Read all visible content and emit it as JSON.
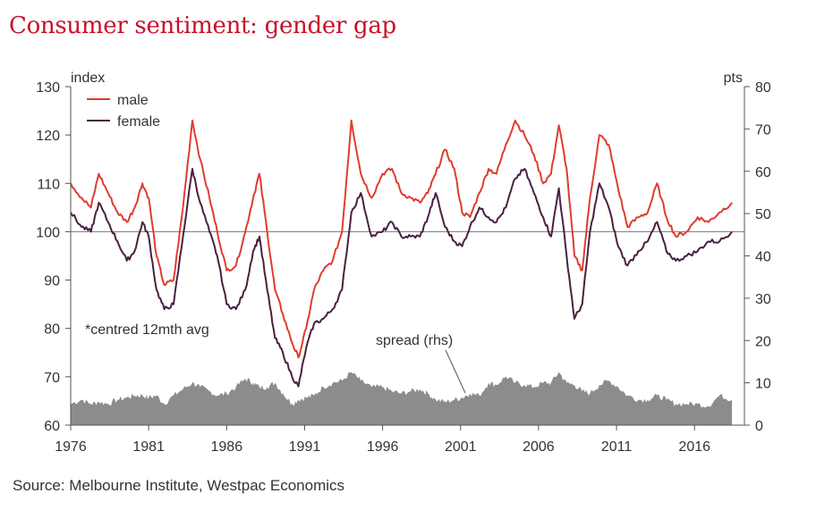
{
  "title": "Consumer sentiment: gender gap",
  "source": "Source: Melbourne Institute, Westpac Economics",
  "chart_data": {
    "type": "line",
    "left_axis_label": "index",
    "right_axis_label": "pts",
    "ylim": [
      60,
      130
    ],
    "ylim_right": [
      0,
      80
    ],
    "y_ticks": [
      "60",
      "70",
      "80",
      "90",
      "100",
      "110",
      "120",
      "130"
    ],
    "y_ticks_right": [
      "0",
      "10",
      "20",
      "30",
      "40",
      "50",
      "60",
      "70",
      "80"
    ],
    "x_ticks": [
      "1976",
      "1981",
      "1986",
      "1991",
      "1996",
      "2001",
      "2006",
      "2011",
      "2016"
    ],
    "reference_line": 100,
    "annotations": {
      "note": "*centred 12mth avg",
      "spread_label": "spread (rhs)"
    },
    "colors": {
      "male": "#e03c31",
      "female": "#4a2040",
      "spread": "#8c8c8f",
      "axis": "#555555"
    },
    "series": [
      {
        "name": "male",
        "axis": "left",
        "x": [
          1976,
          1976.7,
          1977.3,
          1977.8,
          1978.4,
          1979,
          1979.6,
          1980.1,
          1980.6,
          1981,
          1981.5,
          1982,
          1982.6,
          1983.2,
          1983.8,
          1984.3,
          1984.9,
          1985.4,
          1986,
          1986.6,
          1987.2,
          1987.7,
          1988.1,
          1988.6,
          1989.1,
          1989.6,
          1990.2,
          1990.6,
          1991.1,
          1991.6,
          1992.2,
          1992.8,
          1993.4,
          1994,
          1994.6,
          1995.3,
          1996,
          1996.6,
          1997.2,
          1997.8,
          1998.4,
          1998.9,
          1999.4,
          2000,
          2000.6,
          2001.1,
          2001.6,
          2002.2,
          2002.8,
          2003.3,
          2003.9,
          2004.5,
          2005.1,
          2005.7,
          2006.3,
          2006.8,
          2007.3,
          2007.8,
          2008.3,
          2008.8,
          2009.3,
          2009.9,
          2010.5,
          2011.1,
          2011.7,
          2012.4,
          2013,
          2013.6,
          2014.2,
          2014.8,
          2015.5,
          2016.2,
          2016.9,
          2017.6,
          2018.4
        ],
        "values": [
          110,
          107,
          105,
          112,
          108,
          104,
          102,
          105,
          110,
          107,
          95,
          89,
          90,
          105,
          123,
          115,
          107,
          100,
          92,
          93,
          100,
          107,
          112,
          100,
          88,
          83,
          77,
          74,
          80,
          88,
          92,
          94,
          100,
          123,
          112,
          107,
          112,
          113,
          108,
          107,
          106,
          108,
          112,
          117,
          113,
          104,
          103,
          108,
          113,
          112,
          118,
          123,
          120,
          116,
          110,
          112,
          122,
          113,
          95,
          92,
          107,
          120,
          118,
          109,
          101,
          103,
          104,
          110,
          103,
          99,
          100,
          103,
          102,
          104,
          106
        ]
      },
      {
        "name": "female",
        "axis": "left",
        "x": [
          1976,
          1976.7,
          1977.3,
          1977.8,
          1978.4,
          1979,
          1979.6,
          1980.1,
          1980.6,
          1981,
          1981.5,
          1982,
          1982.6,
          1983.2,
          1983.8,
          1984.3,
          1984.9,
          1985.4,
          1986,
          1986.6,
          1987.2,
          1987.7,
          1988.1,
          1988.6,
          1989.1,
          1989.6,
          1990.2,
          1990.6,
          1991.1,
          1991.6,
          1992.2,
          1992.8,
          1993.4,
          1994,
          1994.6,
          1995.3,
          1996,
          1996.6,
          1997.2,
          1997.8,
          1998.4,
          1998.9,
          1999.4,
          2000,
          2000.6,
          2001.1,
          2001.6,
          2002.2,
          2002.8,
          2003.3,
          2003.9,
          2004.5,
          2005.1,
          2005.7,
          2006.3,
          2006.8,
          2007.3,
          2007.8,
          2008.3,
          2008.8,
          2009.3,
          2009.9,
          2010.5,
          2011.1,
          2011.7,
          2012.4,
          2013,
          2013.6,
          2014.2,
          2014.8,
          2015.5,
          2016.2,
          2016.9,
          2017.6,
          2018.4
        ],
        "values": [
          104,
          101,
          100,
          106,
          102,
          98,
          94,
          96,
          102,
          99,
          88,
          84,
          85,
          99,
          113,
          106,
          100,
          95,
          85,
          84,
          88,
          96,
          99,
          88,
          78,
          75,
          70,
          68,
          76,
          81,
          82,
          84,
          88,
          104,
          108,
          99,
          100,
          102,
          99,
          99,
          99,
          103,
          108,
          101,
          98,
          97,
          101,
          105,
          103,
          102,
          105,
          111,
          113,
          108,
          103,
          99,
          109,
          95,
          82,
          85,
          100,
          110,
          105,
          97,
          93,
          96,
          98,
          102,
          96,
          94,
          95,
          96,
          98,
          98,
          100
        ]
      },
      {
        "name": "spread (rhs)",
        "axis": "right",
        "type": "area",
        "x": [
          1976,
          1976.7,
          1977.3,
          1977.8,
          1978.4,
          1979,
          1979.6,
          1980.1,
          1980.6,
          1981,
          1981.5,
          1982,
          1982.6,
          1983.2,
          1983.8,
          1984.3,
          1984.9,
          1985.4,
          1986,
          1986.6,
          1987.2,
          1987.7,
          1988.1,
          1988.6,
          1989.1,
          1989.6,
          1990.2,
          1990.6,
          1991.1,
          1991.6,
          1992.2,
          1992.8,
          1993.4,
          1994,
          1994.6,
          1995.3,
          1996,
          1996.6,
          1997.2,
          1997.8,
          1998.4,
          1998.9,
          1999.4,
          2000,
          2000.6,
          2001.1,
          2001.6,
          2002.2,
          2002.8,
          2003.3,
          2003.9,
          2004.5,
          2005.1,
          2005.7,
          2006.3,
          2006.8,
          2007.3,
          2007.8,
          2008.3,
          2008.8,
          2009.3,
          2009.9,
          2010.5,
          2011.1,
          2011.7,
          2012.4,
          2013,
          2013.6,
          2014.2,
          2014.8,
          2015.5,
          2016.2,
          2016.9,
          2017.6,
          2018.4
        ],
        "values": [
          5,
          6,
          5,
          5.5,
          5,
          6,
          6.5,
          7,
          7,
          6.5,
          7,
          5,
          7,
          8.5,
          10,
          9,
          8,
          7,
          7.5,
          9,
          11,
          10,
          9,
          9,
          10,
          7.5,
          5,
          6,
          6.5,
          7,
          9,
          10,
          10.5,
          12.5,
          10.5,
          9,
          9,
          8,
          7.5,
          8,
          8.5,
          7.5,
          6,
          5.5,
          6,
          6.5,
          7.5,
          7,
          10,
          9.5,
          11.5,
          10,
          9.5,
          9,
          10,
          10,
          12.5,
          10,
          9.5,
          8,
          7.5,
          9.5,
          10.5,
          9,
          7,
          6,
          6,
          7,
          6,
          5,
          5,
          5,
          4.5,
          7,
          6
        ]
      }
    ]
  }
}
